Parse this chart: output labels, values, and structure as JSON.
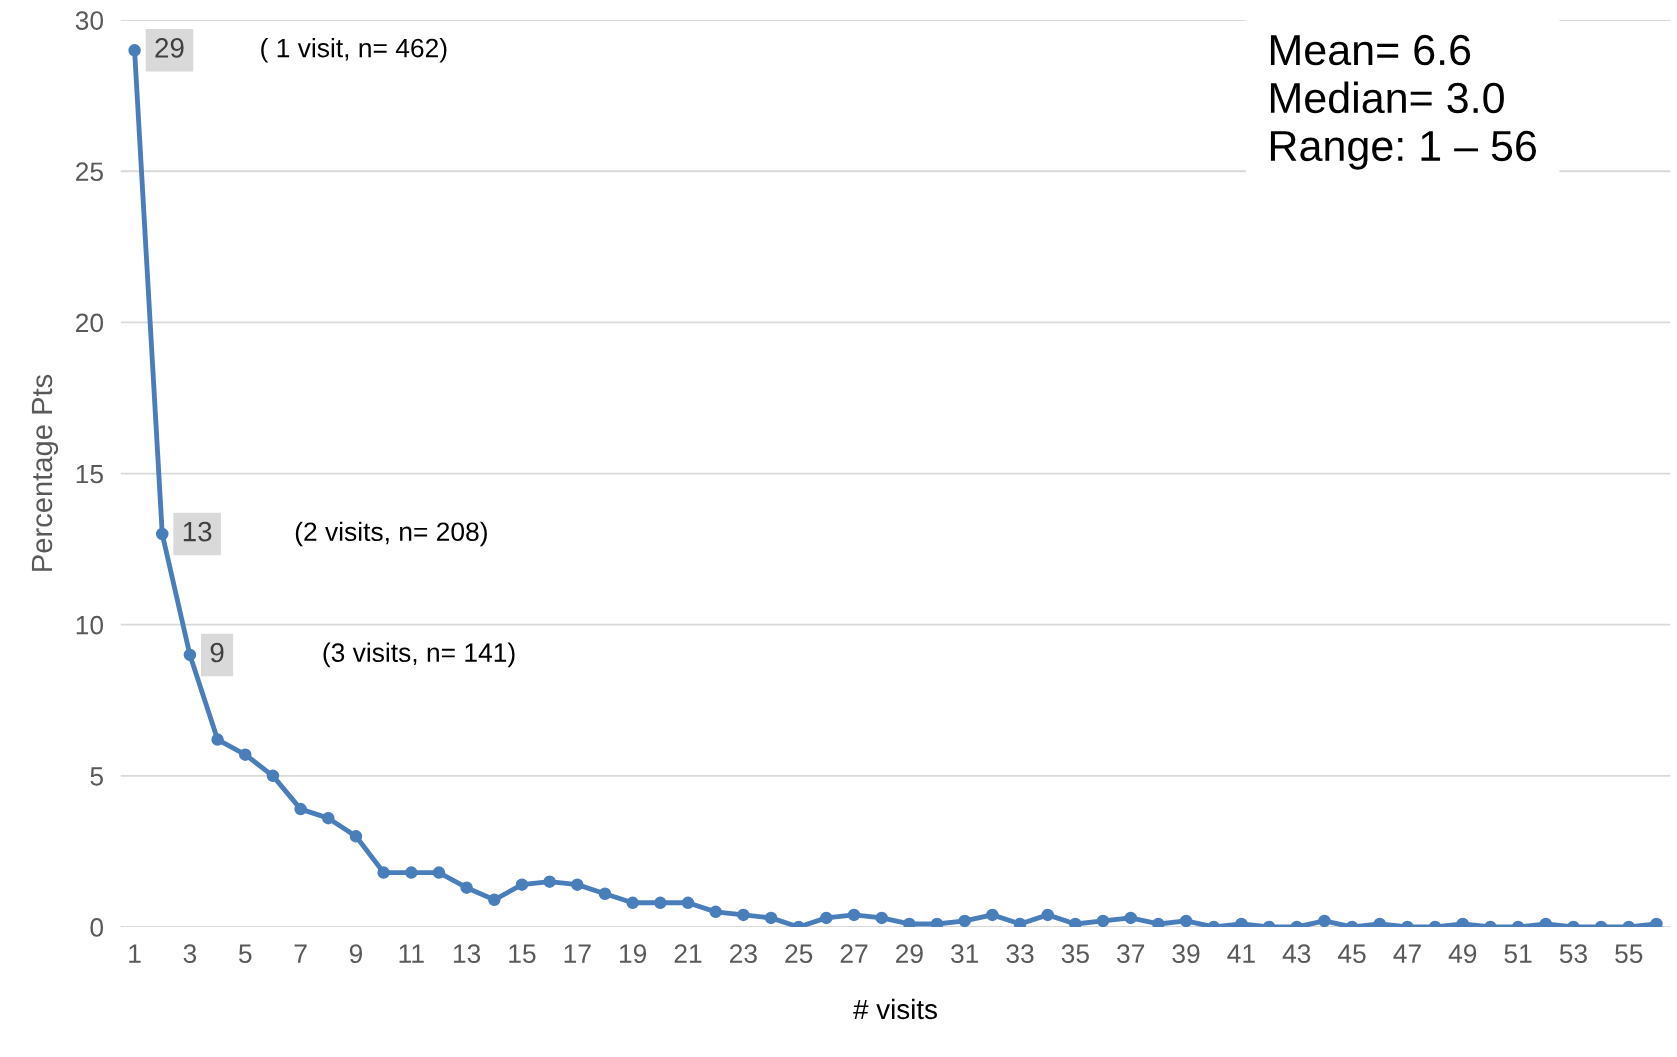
{
  "chart_data": {
    "type": "line",
    "xlabel": "# visits",
    "ylabel": "Percentage Pts",
    "x": [
      1,
      2,
      3,
      4,
      5,
      6,
      7,
      8,
      9,
      10,
      11,
      12,
      13,
      14,
      15,
      16,
      17,
      18,
      19,
      20,
      21,
      22,
      23,
      24,
      25,
      26,
      27,
      28,
      29,
      30,
      31,
      32,
      33,
      34,
      35,
      36,
      37,
      38,
      39,
      40,
      41,
      42,
      43,
      44,
      45,
      46,
      47,
      48,
      49,
      50,
      51,
      52,
      53,
      54,
      55,
      56
    ],
    "series": [
      {
        "color": "#4a7ebb",
        "values": [
          29,
          13,
          9,
          6.2,
          5.7,
          5.0,
          3.9,
          3.6,
          3.0,
          1.8,
          1.8,
          1.8,
          1.3,
          0.9,
          1.4,
          1.5,
          1.4,
          1.1,
          0.8,
          0.8,
          0.8,
          0.5,
          0.4,
          0.3,
          0,
          0.3,
          0.4,
          0.3,
          0.1,
          0.1,
          0.2,
          0.4,
          0.1,
          0.4,
          0.1,
          0.2,
          0.3,
          0.1,
          0.2,
          0,
          0.1,
          0,
          0,
          0.2,
          0,
          0.1,
          0,
          0,
          0.1,
          0,
          0,
          0.1,
          0,
          0,
          0,
          0.1
        ],
        "value_labels": [
          "29",
          "13",
          "9",
          null,
          null,
          null,
          null,
          null,
          null,
          null,
          null,
          null,
          null,
          null,
          null,
          null,
          null,
          null,
          null,
          null,
          null,
          null,
          null,
          null,
          null,
          null,
          null,
          null,
          null,
          null,
          null,
          null,
          null,
          null,
          null,
          null,
          null,
          null,
          null,
          null,
          null,
          null,
          null,
          null,
          null,
          null,
          null,
          null,
          null,
          null,
          null,
          null,
          null,
          null,
          null,
          null
        ]
      }
    ],
    "xlim": [
      0.5,
      56.5
    ],
    "xticks": [
      1,
      3,
      5,
      7,
      9,
      11,
      13,
      15,
      17,
      19,
      21,
      23,
      25,
      27,
      29,
      31,
      33,
      35,
      37,
      39,
      41,
      43,
      45,
      47,
      49,
      51,
      53,
      55
    ],
    "ylim": [
      0,
      30
    ],
    "yticks": [
      0,
      5,
      10,
      15,
      20,
      25,
      30
    ],
    "grid": "y",
    "marker": "circle",
    "line_style": "solid",
    "annotations": [
      "( 1 visit, n= 462)",
      "(2 visits, n= 208)",
      "(3 visits, n= 141)",
      "Mean= 6.6",
      "Median= 3.0",
      "Range: 1 – 56"
    ]
  }
}
